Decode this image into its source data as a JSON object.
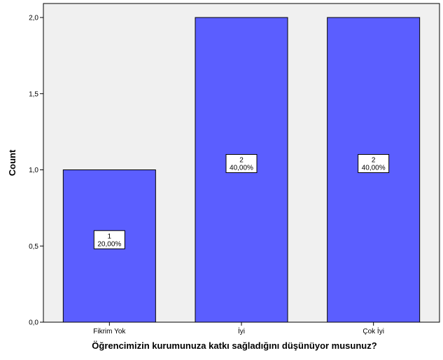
{
  "chart_data": {
    "type": "bar",
    "title": "",
    "xlabel": "Öğrencimizin kurumunuza katkı sağladığını düşünüyor musunuz?",
    "ylabel": "Count",
    "categories": [
      "Fikrim Yok",
      "İyi",
      "Çok İyi"
    ],
    "values": [
      1,
      2,
      2
    ],
    "data_labels": [
      {
        "count": "1",
        "percent": "20,00%"
      },
      {
        "count": "2",
        "percent": "40,00%"
      },
      {
        "count": "2",
        "percent": "40,00%"
      }
    ],
    "ylim": [
      0,
      2
    ],
    "yticks": [
      0,
      0.5,
      1,
      1.5,
      2
    ],
    "ytick_labels": [
      "0,0",
      "0,5",
      "1,0",
      "1,5",
      "2,0"
    ],
    "grid": false,
    "colors": {
      "plot_background": "#f0f0f0",
      "bar_fill": "#5b5eff",
      "bar_stroke": "#000000",
      "label_box": "#ffffff"
    }
  }
}
